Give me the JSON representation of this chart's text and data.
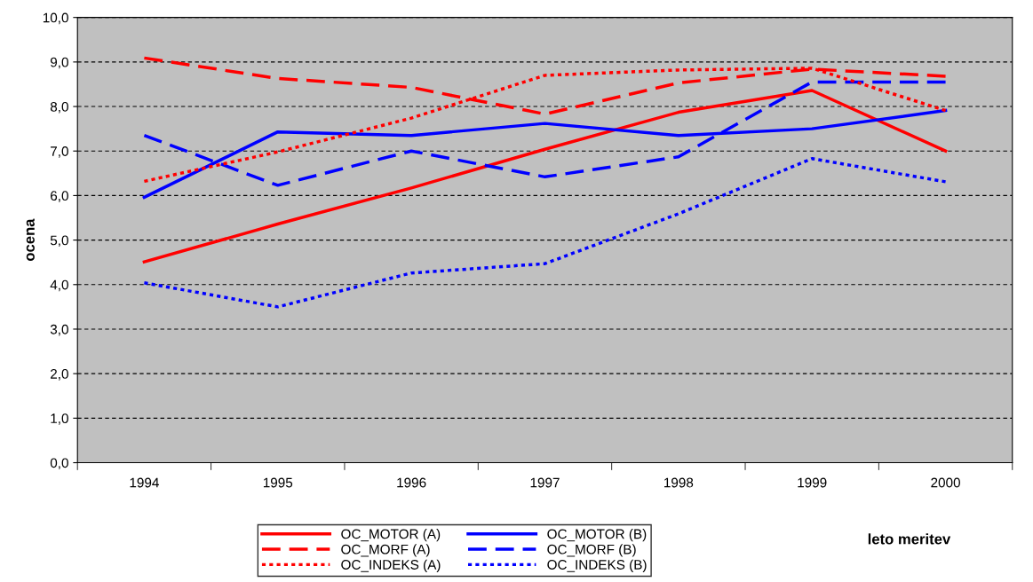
{
  "chart_data": {
    "type": "line",
    "xlabel": "leto meritev",
    "ylabel": "ocena",
    "categories": [
      "1994",
      "1995",
      "1996",
      "1997",
      "1998",
      "1999",
      "2000"
    ],
    "series": [
      {
        "name": "OC_MOTOR (A)",
        "color": "#ff0000",
        "line_style": "solid",
        "values": [
          4.51,
          5.36,
          6.17,
          7.04,
          7.87,
          8.36,
          7.0
        ]
      },
      {
        "name": "OC_MOTOR (B)",
        "color": "#0000ff",
        "line_style": "solid",
        "values": [
          5.96,
          7.43,
          7.35,
          7.62,
          7.35,
          7.5,
          7.91
        ]
      },
      {
        "name": "OC_MORF (A)",
        "color": "#ff0000",
        "line_style": "dashed",
        "values": [
          9.09,
          8.63,
          8.43,
          7.83,
          8.53,
          8.84,
          8.68
        ]
      },
      {
        "name": "OC_MORF (B)",
        "color": "#0000ff",
        "line_style": "dashed",
        "values": [
          7.35,
          6.23,
          7.0,
          6.42,
          6.87,
          8.55,
          8.55
        ]
      },
      {
        "name": "OC_INDEKS (A)",
        "color": "#ff0000",
        "line_style": "dotted",
        "values": [
          6.32,
          6.98,
          7.74,
          8.7,
          8.82,
          8.86,
          7.91
        ]
      },
      {
        "name": "OC_INDEKS (B)",
        "color": "#0000ff",
        "line_style": "dotted",
        "values": [
          4.04,
          3.5,
          4.26,
          4.47,
          5.59,
          6.83,
          6.31
        ]
      }
    ],
    "ylim": [
      0,
      10
    ],
    "yticks": [
      {
        "value": 0,
        "label": "0,0"
      },
      {
        "value": 1,
        "label": "1,0"
      },
      {
        "value": 2,
        "label": "2,0"
      },
      {
        "value": 3,
        "label": "3,0"
      },
      {
        "value": 4,
        "label": "4,0"
      },
      {
        "value": 5,
        "label": "5,0"
      },
      {
        "value": 6,
        "label": "6,0"
      },
      {
        "value": 7,
        "label": "7,0"
      },
      {
        "value": 8,
        "label": "8,0"
      },
      {
        "value": 9,
        "label": "9,0"
      },
      {
        "value": 10,
        "label": "10,0"
      }
    ],
    "grid": "y",
    "legend": "bottom",
    "marker": "none"
  }
}
